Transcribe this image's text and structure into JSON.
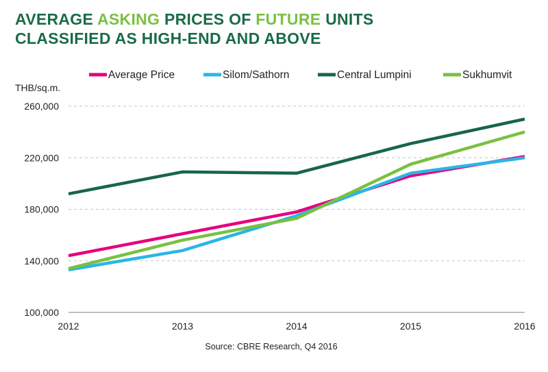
{
  "title": {
    "line1_part1": "AVERAGE ",
    "line1_part2": "ASKING",
    "line1_part3": " PRICES OF ",
    "line1_part4": "FUTURE",
    "line1_part5": " UNITS",
    "line2": "CLASSIFIED AS HIGH-END AND ABOVE"
  },
  "colors": {
    "title_dark": "#1a6b46",
    "title_accent": "#7ac043"
  },
  "source_text": "Source: CBRE Research, Q4 2016",
  "chart_data": {
    "type": "line",
    "ylabel": "THB/sq.m.",
    "xlabel": "",
    "x": [
      "2012",
      "2013",
      "2014",
      "2015",
      "2016"
    ],
    "ylim": [
      100000,
      260000
    ],
    "yticks": [
      100000,
      140000,
      180000,
      220000,
      260000
    ],
    "ytick_labels": [
      "100,000",
      "140,000",
      "180,000",
      "220,000",
      "260,000"
    ],
    "grid": "horizontal dashed",
    "legend": "top",
    "series": [
      {
        "name": "Average Price",
        "color": "#e6007e",
        "values": [
          144000,
          161000,
          178000,
          206000,
          221000
        ]
      },
      {
        "name": "Silom/Sathorn",
        "color": "#29b6e6",
        "values": [
          133000,
          148000,
          175000,
          208000,
          220000
        ]
      },
      {
        "name": "Central Lumpini",
        "color": "#17664a",
        "values": [
          192000,
          209000,
          208000,
          231000,
          250000
        ]
      },
      {
        "name": "Sukhumvit",
        "color": "#7ac043",
        "values": [
          134000,
          156000,
          173000,
          215000,
          240000
        ]
      }
    ]
  }
}
